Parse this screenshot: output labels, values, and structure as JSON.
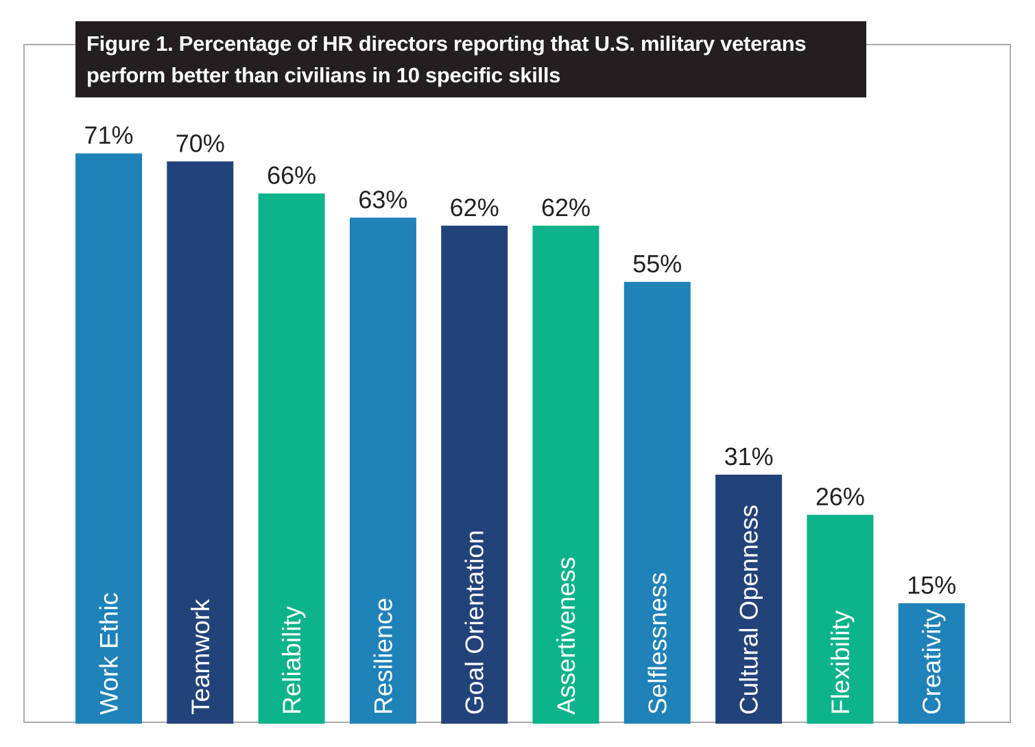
{
  "title": "Figure 1. Percentage of HR directors reporting that U.S. military veterans perform better than civilians in 10 specific skills",
  "chart_data": {
    "type": "bar",
    "title": "Figure 1. Percentage of HR directors reporting that U.S. military veterans perform better than civilians in 10 specific skills",
    "categories": [
      "Work Ethic",
      "Teamwork",
      "Reliability",
      "Resilience",
      "Goal Orientation",
      "Assertiveness",
      "Selflessness",
      "Cultural Openness",
      "Flexibility",
      "Creativity"
    ],
    "values": [
      71,
      70,
      66,
      63,
      62,
      62,
      55,
      31,
      26,
      15
    ],
    "value_labels": [
      "71%",
      "70%",
      "66%",
      "63%",
      "62%",
      "62%",
      "55%",
      "31%",
      "26%",
      "15%"
    ],
    "bar_colors": [
      "#1f82b9",
      "#22427a",
      "#0db38a",
      "#1f82b9",
      "#22427a",
      "#0db38a",
      "#1f82b9",
      "#22427a",
      "#0db38a",
      "#1f82b9"
    ],
    "xlabel": "",
    "ylabel": "",
    "ylim": [
      0,
      100
    ],
    "grid": false,
    "legend": "none",
    "label_orientation": "vertical-inside-bar"
  }
}
